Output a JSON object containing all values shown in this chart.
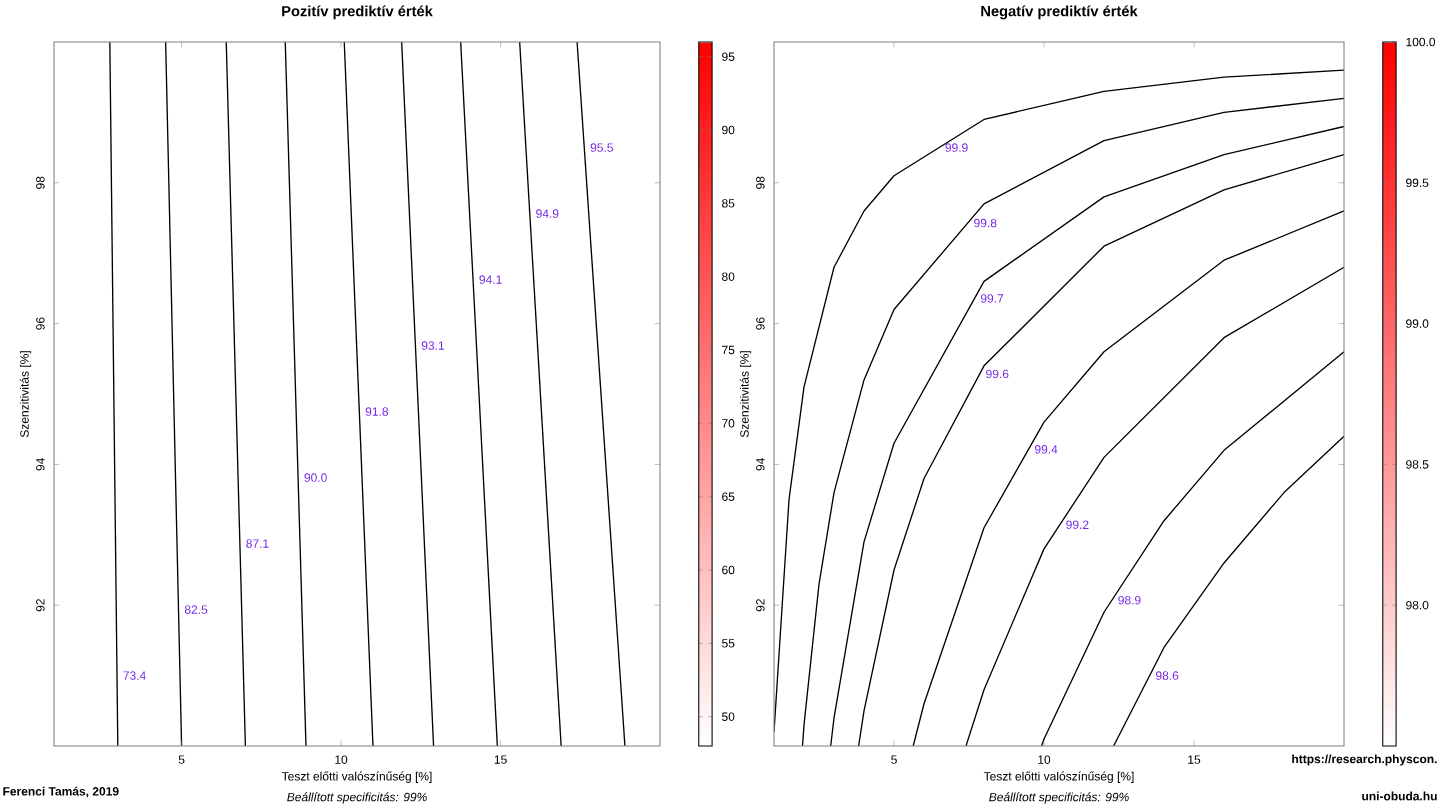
{
  "chart_data": [
    {
      "type": "line",
      "title": "Pozitív prediktív érték",
      "xlabel": "Teszt előtti valószínűség [%]",
      "ylabel": "Szenzitivitás [%]",
      "annotations": [
        "Beállított specificitás: 99%",
        "Ferenci Tamás, 2019"
      ],
      "xlim": [
        1,
        20
      ],
      "ylim": [
        90,
        100
      ],
      "xticks": [
        5,
        10,
        15
      ],
      "yticks": [
        92,
        94,
        96,
        98
      ],
      "clim": [
        48,
        96
      ],
      "cticks": [
        50,
        55,
        60,
        65,
        70,
        75,
        80,
        85,
        90,
        95
      ],
      "series": [
        {
          "name": "73.4",
          "color": "#000000",
          "x": [
            3.0,
            2.75
          ],
          "values": [
            90,
            100
          ]
        },
        {
          "name": "82.5",
          "color": "#000000",
          "x": [
            5.0,
            4.5
          ],
          "values": [
            90,
            100
          ]
        },
        {
          "name": "87.1",
          "color": "#000000",
          "x": [
            7.0,
            6.4
          ],
          "values": [
            90,
            100
          ]
        },
        {
          "name": "90.0",
          "color": "#000000",
          "x": [
            8.9,
            8.25
          ],
          "values": [
            90,
            100
          ]
        },
        {
          "name": "91.8",
          "color": "#000000",
          "x": [
            11.0,
            10.1
          ],
          "values": [
            90,
            100
          ]
        },
        {
          "name": "93.1",
          "color": "#000000",
          "x": [
            12.9,
            11.9
          ],
          "values": [
            90,
            100
          ]
        },
        {
          "name": "94.1",
          "color": "#000000",
          "x": [
            14.9,
            13.75
          ],
          "values": [
            90,
            100
          ]
        },
        {
          "name": "94.9",
          "color": "#000000",
          "x": [
            16.9,
            15.6
          ],
          "values": [
            90,
            100
          ]
        },
        {
          "name": "95.5",
          "color": "#000000",
          "x": [
            18.9,
            17.4
          ],
          "values": [
            90,
            100
          ]
        }
      ]
    },
    {
      "type": "line",
      "title": "Negatív prediktív érték",
      "xlabel": "Teszt előtti valószínűség [%]",
      "ylabel": "Szenzitivitás [%]",
      "annotations": [
        "Beállított specificitás: 99%",
        "https://research.physcon.",
        "uni-obuda.hu"
      ],
      "xlim": [
        1,
        20
      ],
      "ylim": [
        90,
        100
      ],
      "xticks": [
        5,
        10,
        15
      ],
      "yticks": [
        92,
        94,
        96,
        98
      ],
      "clim": [
        97.5,
        100
      ],
      "cticks": [
        {
          "value": 98,
          "label": "98.0"
        },
        {
          "value": 98.5,
          "label": "98.5"
        },
        {
          "value": 99,
          "label": "99.0"
        },
        {
          "value": 99.5,
          "label": "99.5"
        },
        {
          "value": 100,
          "label": "100.0"
        }
      ],
      "series": [
        {
          "name": "99.9",
          "color": "#000000",
          "x": [
            1,
            1.5,
            2,
            3,
            4,
            5,
            8,
            12,
            16,
            20
          ],
          "values": [
            90.2,
            93.5,
            95.1,
            96.8,
            97.6,
            98.1,
            98.9,
            99.3,
            99.5,
            99.6
          ]
        },
        {
          "name": "99.8",
          "color": "#000000",
          "x": [
            1.95,
            2,
            2.5,
            3,
            4,
            5,
            8,
            12,
            16,
            20
          ],
          "values": [
            90,
            90.3,
            92.3,
            93.6,
            95.2,
            96.2,
            97.7,
            98.6,
            99.0,
            99.2
          ]
        },
        {
          "name": "99.7",
          "color": "#000000",
          "x": [
            2.89,
            3,
            4,
            5,
            8,
            12,
            16,
            20
          ],
          "values": [
            90,
            90.4,
            92.9,
            94.3,
            96.6,
            97.8,
            98.4,
            98.8
          ]
        },
        {
          "name": "99.6",
          "color": "#000000",
          "x": [
            3.82,
            4,
            5,
            6,
            8,
            12,
            16,
            20
          ],
          "values": [
            90,
            90.5,
            92.5,
            93.8,
            95.4,
            97.1,
            97.9,
            98.4
          ]
        },
        {
          "name": "99.4",
          "color": "#000000",
          "x": [
            5.64,
            6,
            8,
            10,
            12,
            16,
            20
          ],
          "values": [
            90,
            90.6,
            93.1,
            94.6,
            95.6,
            96.9,
            97.6
          ]
        },
        {
          "name": "99.2",
          "color": "#000000",
          "x": [
            7.4,
            8,
            10,
            12,
            16,
            20
          ],
          "values": [
            90,
            90.8,
            92.8,
            94.1,
            95.8,
            96.8
          ]
        },
        {
          "name": "98.9",
          "color": "#000000",
          "x": [
            9.92,
            10,
            12,
            14,
            16,
            20
          ],
          "values": [
            90,
            90.1,
            91.9,
            93.2,
            94.2,
            95.6
          ]
        },
        {
          "name": "98.6",
          "color": "#000000",
          "x": [
            12.32,
            14,
            16,
            18,
            20
          ],
          "values": [
            90,
            91.4,
            92.6,
            93.6,
            94.4
          ]
        }
      ]
    }
  ]
}
